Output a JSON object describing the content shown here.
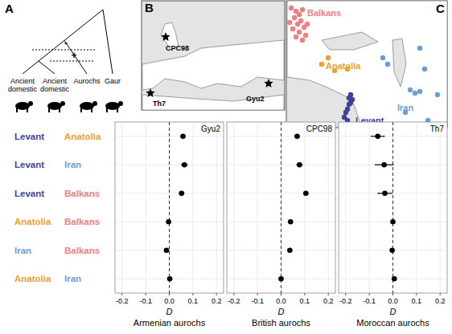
{
  "panel_labels": [
    "A",
    "B",
    "C"
  ],
  "tree": {
    "tips": [
      [
        "Ancient",
        "domestic"
      ],
      [
        "Ancient",
        "domestic"
      ],
      [
        "Aurochs"
      ],
      [
        "Gaur"
      ]
    ],
    "flow_signs": [
      "-",
      "+"
    ]
  },
  "map_b": {
    "sites": [
      "CPC98",
      "Gyu2",
      "Th7"
    ]
  },
  "map_c": {
    "regions": [
      {
        "name": "Balkans",
        "color": "#f08080"
      },
      {
        "name": "Anatolia",
        "color": "#f0a030"
      },
      {
        "name": "Levant",
        "color": "#3f3f9f"
      },
      {
        "name": "Iran",
        "color": "#6a9fd8"
      }
    ]
  },
  "row_labels": [
    {
      "left": "Levant",
      "right": "Anatolia"
    },
    {
      "left": "Levant",
      "right": "Iran"
    },
    {
      "left": "Levant",
      "right": "Balkans"
    },
    {
      "left": "Anatolia",
      "right": "Balkans"
    },
    {
      "left": "Iran",
      "right": "Balkans"
    },
    {
      "left": "Anatolia",
      "right": "Iran"
    }
  ],
  "chart_data": [
    {
      "type": "scatter",
      "orientation": "horizontal",
      "title": "Gyu2",
      "x_label": "D",
      "x_sublabel": "Armenian aurochs",
      "xlim": [
        -0.23,
        0.23
      ],
      "xticks": [
        -0.2,
        -0.1,
        {
          "value": 0,
          "label": "0.0"
        },
        0.1,
        0.2
      ],
      "grid": true,
      "color": "#000000",
      "marker": "circle",
      "reference_x": 0,
      "values": [
        0.058,
        0.064,
        0.052,
        -0.003,
        -0.012,
        0.002
      ],
      "errors": [
        0.012,
        0.014,
        0.012,
        0.006,
        0.006,
        0.006
      ]
    },
    {
      "type": "scatter",
      "orientation": "horizontal",
      "title": "CPC98",
      "x_label": "D",
      "x_sublabel": "British aurochs",
      "xlim": [
        -0.23,
        0.23
      ],
      "xticks": [
        -0.2,
        -0.1,
        {
          "value": 0,
          "label": "0.0"
        },
        0.1,
        0.2
      ],
      "grid": true,
      "color": "#000000",
      "marker": "circle",
      "reference_x": 0,
      "values": [
        0.068,
        0.078,
        0.105,
        0.04,
        0.037,
        0.0
      ],
      "errors": [
        0.012,
        0.014,
        0.012,
        0.006,
        0.006,
        0.006
      ]
    },
    {
      "type": "scatter",
      "orientation": "horizontal",
      "title": "Th7",
      "x_label": "D",
      "x_sublabel": "Moroccan aurochs",
      "xlim": [
        -0.23,
        0.23
      ],
      "xticks": [
        -0.2,
        -0.1,
        {
          "value": 0,
          "label": "0.0"
        },
        0.1,
        0.2
      ],
      "grid": true,
      "color": "#000000",
      "marker": "circle",
      "reference_x": 0,
      "values": [
        -0.064,
        -0.037,
        -0.034,
        0.0,
        -0.003,
        0.006
      ],
      "errors": [
        0.03,
        0.04,
        0.032,
        0.008,
        0.008,
        0.008
      ]
    }
  ]
}
